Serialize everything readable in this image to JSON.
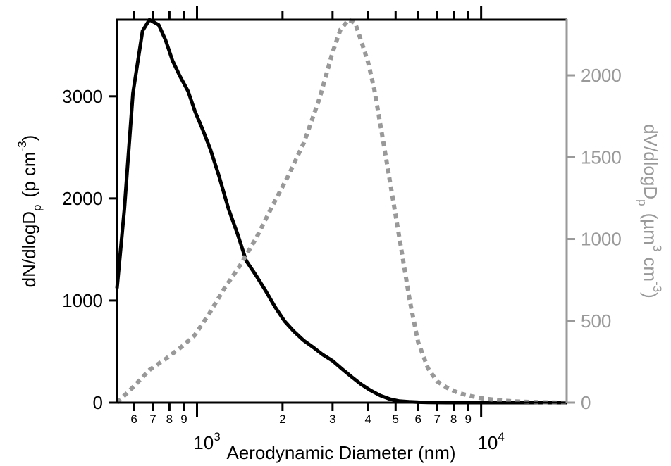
{
  "chart_data": {
    "type": "line",
    "title": "",
    "xlabel": "Aerodynamic Diameter (nm)",
    "ylabel_left": {
      "main": "dN/dlogD",
      "sub": "p",
      "unit": "(p cm",
      "exp": "-3",
      "close": ")"
    },
    "ylabel_right": {
      "main": "dV/dlogD",
      "sub": "p",
      "unit": "(µm",
      "exp1": "3",
      "mid": "cm",
      "exp2": "-3",
      "close": ")"
    },
    "x_scale": "log",
    "xlim": [
      523,
      20000
    ],
    "ylim_left": [
      0,
      3750
    ],
    "ylim_right": [
      0,
      2340
    ],
    "x_major_ticks": [
      {
        "value": 1000,
        "base": "10",
        "exp": "3"
      },
      {
        "value": 10000,
        "base": "10",
        "exp": "4"
      }
    ],
    "x_minor_ticks": [
      {
        "value": 600,
        "label": "6"
      },
      {
        "value": 700,
        "label": "7"
      },
      {
        "value": 800,
        "label": "8"
      },
      {
        "value": 900,
        "label": "9"
      },
      {
        "value": 2000,
        "label": "2"
      },
      {
        "value": 3000,
        "label": "3"
      },
      {
        "value": 4000,
        "label": "4"
      },
      {
        "value": 5000,
        "label": "5"
      },
      {
        "value": 6000,
        "label": "6"
      },
      {
        "value": 7000,
        "label": "7"
      },
      {
        "value": 8000,
        "label": "8"
      },
      {
        "value": 9000,
        "label": "9"
      }
    ],
    "y_left_ticks": [
      {
        "value": 0,
        "label": "0"
      },
      {
        "value": 1000,
        "label": "1000"
      },
      {
        "value": 2000,
        "label": "2000"
      },
      {
        "value": 3000,
        "label": "3000"
      }
    ],
    "y_right_ticks": [
      {
        "value": 0,
        "label": "0"
      },
      {
        "value": 500,
        "label": "500"
      },
      {
        "value": 1000,
        "label": "1000"
      },
      {
        "value": 1500,
        "label": "1500"
      },
      {
        "value": 2000,
        "label": "2000"
      }
    ],
    "series": [
      {
        "axis": "left",
        "style": "solid",
        "color": "#000000",
        "x": [
          523,
          555,
          595,
          643,
          680,
          733,
          775,
          820,
          870,
          930,
          985,
          1045,
          1115,
          1195,
          1290,
          1390,
          1490,
          1610,
          1740,
          1880,
          2030,
          2190,
          2370,
          2570,
          2770,
          3000,
          3240,
          3510,
          3780,
          4080,
          4410,
          4770,
          5150,
          5570,
          6010,
          6500,
          7020,
          7590,
          8200,
          9000,
          10000,
          12000,
          15000,
          20000
        ],
        "y": [
          1120,
          1890,
          3030,
          3640,
          3750,
          3700,
          3550,
          3350,
          3200,
          3050,
          2850,
          2680,
          2480,
          2220,
          1900,
          1650,
          1390,
          1250,
          1100,
          940,
          800,
          700,
          610,
          540,
          470,
          410,
          330,
          250,
          180,
          120,
          70,
          35,
          15,
          8,
          4,
          2,
          1,
          0,
          0,
          0,
          0,
          0,
          0,
          0
        ]
      },
      {
        "axis": "right",
        "style": "dotted",
        "color": "#999999",
        "x": [
          523,
          600,
          680,
          780,
          880,
          980,
          1100,
          1250,
          1420,
          1620,
          1840,
          2100,
          2380,
          2700,
          3000,
          3200,
          3420,
          3600,
          3800,
          4000,
          4200,
          4500,
          4800,
          5200,
          5600,
          6000,
          6500,
          7000,
          7600,
          8300,
          9200,
          10200,
          11500,
          13000,
          15000,
          18000,
          20000
        ],
        "y": [
          0,
          100,
          200,
          270,
          340,
          410,
          540,
          700,
          840,
          1010,
          1200,
          1390,
          1590,
          1860,
          2140,
          2280,
          2340,
          2320,
          2200,
          2080,
          1920,
          1620,
          1330,
          970,
          630,
          370,
          210,
          130,
          90,
          60,
          40,
          25,
          15,
          8,
          4,
          1,
          0
        ]
      }
    ]
  }
}
